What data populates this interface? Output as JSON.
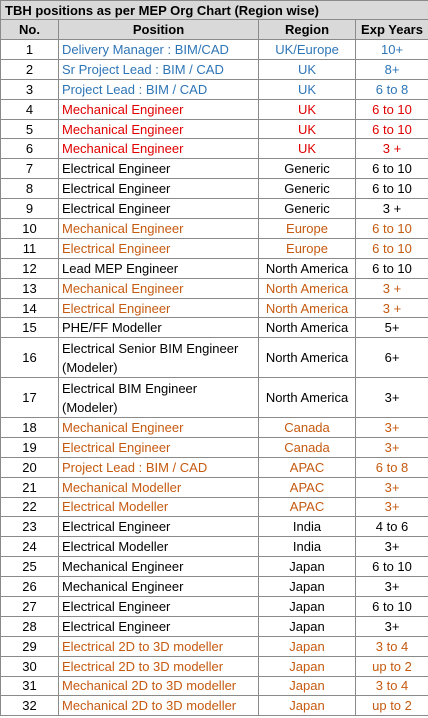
{
  "title": "TBH positions as per MEP Org Chart (Region wise)",
  "columns": [
    "No.",
    "Position",
    "Region",
    "Exp Years"
  ],
  "colors": {
    "blue": "#2e75b6",
    "red": "#e00000",
    "black": "#000000",
    "orange": "#c55a11"
  },
  "rows": [
    {
      "no": "1",
      "position": "Delivery Manager : BIM/CAD",
      "region": "UK/Europe",
      "exp": "10+",
      "color": "blue"
    },
    {
      "no": "2",
      "position": "Sr Project Lead : BIM / CAD",
      "region": "UK",
      "exp": "8+",
      "color": "blue"
    },
    {
      "no": "3",
      "position": "Project Lead : BIM / CAD",
      "region": "UK",
      "exp": "6 to 8",
      "color": "blue"
    },
    {
      "no": "4",
      "position": "Mechanical Engineer",
      "region": "UK",
      "exp": "6 to 10",
      "color": "red"
    },
    {
      "no": "5",
      "position": "Mechanical Engineer",
      "region": "UK",
      "exp": "6 to 10",
      "color": "red"
    },
    {
      "no": "6",
      "position": "Mechanical Engineer",
      "region": "UK",
      "exp": "3 +",
      "color": "red"
    },
    {
      "no": "7",
      "position": "Electrical Engineer",
      "region": "Generic",
      "exp": "6 to 10",
      "color": "black"
    },
    {
      "no": "8",
      "position": "Electrical Engineer",
      "region": "Generic",
      "exp": "6 to 10",
      "color": "black"
    },
    {
      "no": "9",
      "position": "Electrical Engineer",
      "region": "Generic",
      "exp": "3 +",
      "color": "black"
    },
    {
      "no": "10",
      "position": "Mechanical Engineer",
      "region": "Europe",
      "exp": "6 to 10",
      "color": "orange"
    },
    {
      "no": "11",
      "position": "Electrical Engineer",
      "region": "Europe",
      "exp": "6 to 10",
      "color": "orange"
    },
    {
      "no": "12",
      "position": "Lead  MEP  Engineer",
      "region": "North America",
      "exp": "6 to 10",
      "color": "black"
    },
    {
      "no": "13",
      "position": "Mechanical Engineer",
      "region": "North America",
      "exp": "3 +",
      "color": "orange"
    },
    {
      "no": "14",
      "position": "Electrical Engineer",
      "region": "North America",
      "exp": "3 +",
      "color": "orange"
    },
    {
      "no": "15",
      "position": "PHE/FF Modeller",
      "region": "North America",
      "exp": "5+",
      "color": "black"
    },
    {
      "no": "16",
      "position": "Electrical Senior  BIM Engineer (Modeler)",
      "region": "North America",
      "exp": "6+",
      "color": "black",
      "tall": true
    },
    {
      "no": "17",
      "position": "Electrical BIM Engineer (Modeler)",
      "region": "North America",
      "exp": "3+",
      "color": "black",
      "tall": true
    },
    {
      "no": "18",
      "position": "Mechanical Engineer",
      "region": "Canada",
      "exp": "3+",
      "color": "orange"
    },
    {
      "no": "19",
      "position": "Electrical Engineer",
      "region": "Canada",
      "exp": "3+",
      "color": "orange"
    },
    {
      "no": "20",
      "position": "Project Lead : BIM / CAD",
      "region": "APAC",
      "exp": "6 to 8",
      "color": "orange"
    },
    {
      "no": "21",
      "position": "Mechanical Modeller",
      "region": "APAC",
      "exp": "3+",
      "color": "orange"
    },
    {
      "no": "22",
      "position": "Electrical Modeller",
      "region": "APAC",
      "exp": "3+",
      "color": "orange"
    },
    {
      "no": "23",
      "position": "Electrical Engineer",
      "region": "India",
      "exp": "4 to 6",
      "color": "black"
    },
    {
      "no": "24",
      "position": "Electrical Modeller",
      "region": "India",
      "exp": "3+",
      "color": "black"
    },
    {
      "no": "25",
      "position": "Mechanical Engineer",
      "region": "Japan",
      "exp": "6 to 10",
      "color": "black"
    },
    {
      "no": "26",
      "position": "Mechanical Engineer",
      "region": "Japan",
      "exp": "3+",
      "color": "black"
    },
    {
      "no": "27",
      "position": "Electrical Engineer",
      "region": "Japan",
      "exp": "6 to 10",
      "color": "black"
    },
    {
      "no": "28",
      "position": "Electrical Engineer",
      "region": "Japan",
      "exp": "3+",
      "color": "black"
    },
    {
      "no": "29",
      "position": "Electrical 2D to 3D modeller",
      "region": "Japan",
      "exp": "3 to 4",
      "color": "orange"
    },
    {
      "no": "30",
      "position": "Electrical 2D to 3D modeller",
      "region": "Japan",
      "exp": "up to 2",
      "color": "orange"
    },
    {
      "no": "31",
      "position": "Mechanical 2D to 3D modeller",
      "region": "Japan",
      "exp": "3 to 4",
      "color": "orange"
    },
    {
      "no": "32",
      "position": "Mechanical 2D to 3D modeller",
      "region": "Japan",
      "exp": "up to 2",
      "color": "orange"
    }
  ]
}
